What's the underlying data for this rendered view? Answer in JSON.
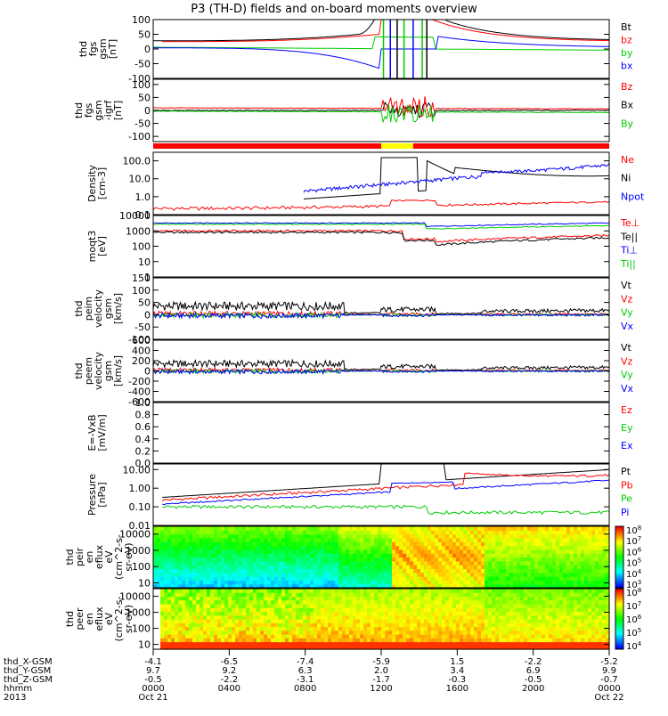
{
  "title": "P3 (TH-D) fields and on-board moments overview",
  "colors": {
    "black": "#000000",
    "red": "#ff0000",
    "green": "#00cc00",
    "blue": "#0000ff",
    "yellow": "#ffff00"
  },
  "chart_data": [
    {
      "type": "line",
      "panel": "fgs",
      "ylabel": [
        "thd",
        "fgs",
        "gsm",
        "[nT]"
      ],
      "ylim": [
        -100,
        100
      ],
      "yticks": [
        "100",
        "50",
        "0",
        "-50",
        "-100"
      ],
      "series": [
        {
          "name": "Bt",
          "color": "black"
        },
        {
          "name": "bz",
          "color": "red"
        },
        {
          "name": "by",
          "color": "green"
        },
        {
          "name": "bx",
          "color": "blue"
        }
      ]
    },
    {
      "type": "line",
      "panel": "fgs-igrf",
      "ylabel": [
        "thd",
        "fgs",
        "gsm",
        "-igrf",
        "[nT]"
      ],
      "ylim": [
        -120,
        120
      ],
      "yticks": [
        "100",
        "50",
        "0",
        "-50",
        "-100"
      ],
      "series": [
        {
          "name": "Bz",
          "color": "red"
        },
        {
          "name": "Bx",
          "color": "black"
        },
        {
          "name": "By",
          "color": "green"
        }
      ]
    },
    {
      "type": "line",
      "panel": "density",
      "ylabel": [
        "Density",
        "[cm-3]"
      ],
      "scale": "log",
      "ylim": [
        0.1,
        300
      ],
      "yticks": [
        "100.0",
        "10.0",
        "1.0",
        "0.1"
      ],
      "series": [
        {
          "name": "Ne",
          "color": "red"
        },
        {
          "name": "Ni",
          "color": "black"
        },
        {
          "name": "Npot",
          "color": "blue"
        }
      ]
    },
    {
      "type": "line",
      "panel": "temperature",
      "ylabel": [
        "moqt3",
        "[eV]"
      ],
      "scale": "log",
      "ylim": [
        1,
        10000
      ],
      "yticks": [
        "10000",
        "1000",
        "100",
        "10",
        "1"
      ],
      "series": [
        {
          "name": "Te⊥",
          "color": "red"
        },
        {
          "name": "Te||",
          "color": "black"
        },
        {
          "name": "Ti⊥",
          "color": "blue"
        },
        {
          "name": "Ti||",
          "color": "green"
        }
      ]
    },
    {
      "type": "line",
      "panel": "peim-velocity",
      "ylabel": [
        "thd",
        "peim",
        "velocity",
        "gsm",
        "[km/s]"
      ],
      "ylim": [
        -100,
        150
      ],
      "yticks": [
        "150",
        "100",
        "50",
        "0",
        "-50",
        "-100"
      ],
      "series": [
        {
          "name": "Vt",
          "color": "black"
        },
        {
          "name": "Vz",
          "color": "red"
        },
        {
          "name": "Vy",
          "color": "green"
        },
        {
          "name": "Vx",
          "color": "blue"
        }
      ]
    },
    {
      "type": "line",
      "panel": "peem-velocity",
      "ylabel": [
        "thd",
        "peem",
        "velocity",
        "gsm",
        "[km/s]"
      ],
      "ylim": [
        -600,
        600
      ],
      "yticks": [
        "600",
        "400",
        "200",
        "0",
        "-200",
        "-400",
        "-600"
      ],
      "series": [
        {
          "name": "Vt",
          "color": "black"
        },
        {
          "name": "Vz",
          "color": "red"
        },
        {
          "name": "Vy",
          "color": "green"
        },
        {
          "name": "Vx",
          "color": "blue"
        }
      ]
    },
    {
      "type": "line",
      "panel": "efield",
      "ylabel": [
        "E=-VxB",
        "[mV/m]"
      ],
      "ylim": [
        0,
        1
      ],
      "yticks": [
        "1.0",
        "0.8",
        "0.6",
        "0.4",
        "0.2",
        "0.0"
      ],
      "series": [
        {
          "name": "Ez",
          "color": "red"
        },
        {
          "name": "Ey",
          "color": "green"
        },
        {
          "name": "Ex",
          "color": "blue"
        }
      ]
    },
    {
      "type": "line",
      "panel": "pressure",
      "ylabel": [
        "Pressure",
        "[nPa]"
      ],
      "scale": "log",
      "ylim": [
        0.01,
        20
      ],
      "yticks": [
        "10.00",
        "1.00",
        "0.10",
        "0.01"
      ],
      "series": [
        {
          "name": "Pt",
          "color": "black"
        },
        {
          "name": "Pb",
          "color": "red"
        },
        {
          "name": "Pe",
          "color": "green"
        },
        {
          "name": "Pi",
          "color": "blue"
        }
      ]
    },
    {
      "type": "heatmap",
      "panel": "peir-spectrogram",
      "ylabel": [
        "thd",
        "peir",
        "en",
        "eflux",
        "eV",
        "(cm^2-s-",
        "sr-eV)"
      ],
      "scale": "log",
      "ylim": [
        5,
        30000
      ],
      "yticks": [
        "10000",
        "1000",
        "100",
        "10"
      ],
      "colorbar": {
        "labels": [
          "10^8",
          "10^7",
          "10^6",
          "10^5",
          "10^4",
          "10^3"
        ]
      }
    },
    {
      "type": "heatmap",
      "panel": "peer-spectrogram",
      "ylabel": [
        "thd",
        "peer",
        "en",
        "eflux",
        "eV",
        "(cm^2-s-",
        "sr-eV)"
      ],
      "scale": "log",
      "ylim": [
        5,
        30000
      ],
      "yticks": [
        "10000",
        "1000",
        "100",
        "10"
      ],
      "colorbar": {
        "labels": [
          "10^8",
          "10^7",
          "10^6",
          "10^5",
          "10^4"
        ]
      }
    }
  ],
  "x_axis": {
    "row_labels": [
      "thd_X-GSM",
      "thd_Y-GSM",
      "thd_Z-GSM",
      "hhmm",
      "2013"
    ],
    "ticks": [
      {
        "x": [
          "-4.1",
          "9.7",
          "-0.5"
        ],
        "hhmm": "0000",
        "date": "Oct 21"
      },
      {
        "x": [
          "-6.5",
          "9.2",
          "-2.2"
        ],
        "hhmm": "0400",
        "date": ""
      },
      {
        "x": [
          "-7.4",
          "6.3",
          "-3.1"
        ],
        "hhmm": "0800",
        "date": ""
      },
      {
        "x": [
          "-5.9",
          "2.0",
          "-1.7"
        ],
        "hhmm": "1200",
        "date": ""
      },
      {
        "x": [
          "1.5",
          "3.4",
          "-0.3"
        ],
        "hhmm": "1600",
        "date": ""
      },
      {
        "x": [
          "-2.2",
          "6.9",
          "-0.5"
        ],
        "hhmm": "2000",
        "date": ""
      },
      {
        "x": [
          "-5.2",
          "9.9",
          "-0.7"
        ],
        "hhmm": "0000",
        "date": "Oct 22"
      }
    ]
  }
}
